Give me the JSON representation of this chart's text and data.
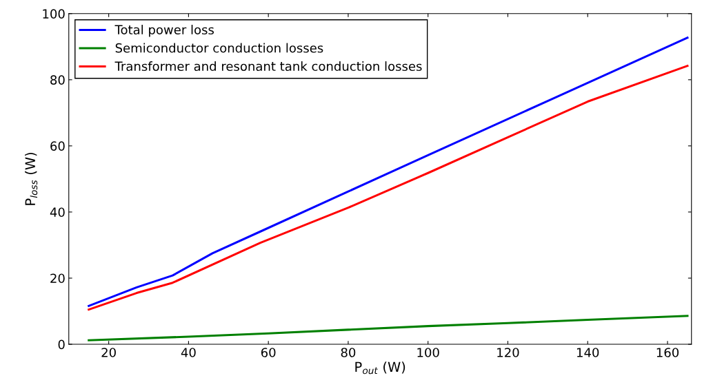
{
  "chart_data": {
    "type": "line",
    "xlabel": "P$_{out}$ (W)",
    "ylabel": "P$_{loss}$ (W)",
    "xlim": [
      10,
      166
    ],
    "xticks": [
      20,
      40,
      60,
      80,
      100,
      120,
      140,
      160
    ],
    "ylim": [
      0,
      100
    ],
    "yticks": [
      0,
      20,
      40,
      60,
      80,
      100
    ],
    "grid": false,
    "legend": "top left",
    "marker": "none",
    "line_style": "solid",
    "series": [
      {
        "name": "Total power loss",
        "color": "#0000ff",
        "x": [
          15,
          27,
          36,
          46,
          58,
          80,
          100,
          130,
          165
        ],
        "values": [
          11.6,
          17.2,
          20.8,
          27.5,
          34.1,
          46.2,
          57.2,
          73.6,
          92.7
        ]
      },
      {
        "name": "Semiconductor conduction losses",
        "color": "#008000",
        "x": [
          15,
          40,
          60,
          80,
          100,
          120,
          140,
          165
        ],
        "values": [
          1.2,
          2.3,
          3.3,
          4.4,
          5.5,
          6.4,
          7.4,
          8.6
        ]
      },
      {
        "name": "Transformer and resonant tank conduction losses",
        "color": "#ff0000",
        "x": [
          15,
          27,
          36,
          58,
          80,
          100,
          120,
          140,
          165
        ],
        "values": [
          10.5,
          15.5,
          18.6,
          30.7,
          41.3,
          51.8,
          62.6,
          73.4,
          84.2
        ]
      }
    ]
  }
}
